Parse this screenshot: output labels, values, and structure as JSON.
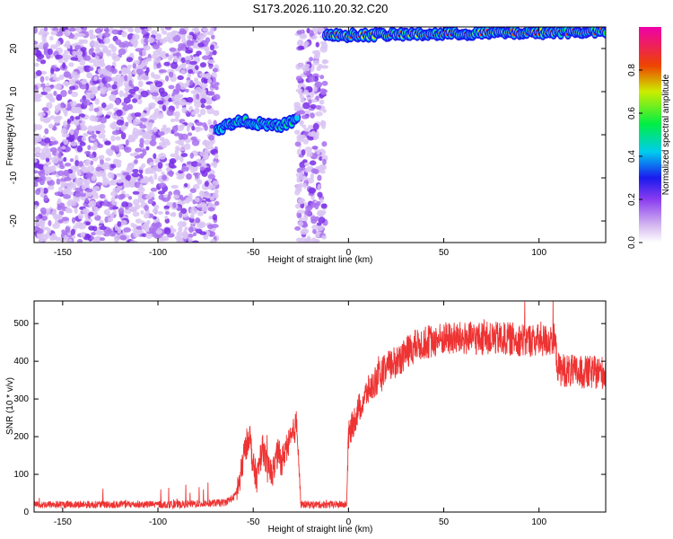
{
  "chart_data": [
    {
      "type": "heatmap",
      "title": "S173.2026.110.20.32.C20",
      "xlabel": "Height of straight line (km)",
      "ylabel": "Frequency (Hz)",
      "xlim": [
        -165,
        135
      ],
      "ylim": [
        -25,
        25
      ],
      "xticks": [
        -150,
        -100,
        -50,
        0,
        50,
        100
      ],
      "yticks": [
        -20,
        -10,
        0,
        10,
        20
      ],
      "colorbar": {
        "label": "Normalized spectral amplitude",
        "range": [
          0.0,
          1.0
        ],
        "ticks": [
          0.0,
          0.2,
          0.4,
          0.6,
          0.8
        ]
      },
      "regions": [
        {
          "name": "broadband noise",
          "x_range": [
            -165,
            -69
          ],
          "amplitude": 0.3
        },
        {
          "name": "narrow tone",
          "x_range": [
            -69,
            -27
          ],
          "freq_start": 1,
          "freq_end": 4,
          "amplitude": 0.5
        },
        {
          "name": "broadband noise",
          "x_range": [
            -27,
            -12
          ],
          "amplitude": 0.3
        },
        {
          "name": "strong tone",
          "x_range": [
            -12,
            135
          ],
          "freq_start": 23,
          "freq_end": 24,
          "amplitude": 0.85
        }
      ]
    },
    {
      "type": "line",
      "xlabel": "Height of straight line (km)",
      "ylabel": "SNR (10 * v/v)",
      "xlim": [
        -165,
        135
      ],
      "ylim": [
        0,
        560
      ],
      "xticks": [
        -150,
        -100,
        -50,
        0,
        50,
        100
      ],
      "yticks": [
        0,
        100,
        200,
        300,
        400,
        500
      ],
      "color": "#ee3333",
      "series": [
        {
          "name": "SNR",
          "x": [
            -165,
            -150,
            -120,
            -90,
            -65,
            -60,
            -57,
            -55,
            -52,
            -50,
            -48,
            -45,
            -43,
            -40,
            -37,
            -35,
            -33,
            -30,
            -27,
            -25,
            -20,
            -15,
            -10,
            -5,
            -2,
            -1,
            0,
            2,
            5,
            8,
            10,
            15,
            20,
            25,
            30,
            35,
            40,
            45,
            50,
            60,
            70,
            80,
            90,
            100,
            105,
            108,
            110,
            115,
            120,
            125,
            130,
            135
          ],
          "y": [
            20,
            20,
            20,
            20,
            25,
            40,
            80,
            150,
            210,
            120,
            90,
            180,
            120,
            100,
            160,
            130,
            170,
            190,
            240,
            20,
            20,
            20,
            20,
            20,
            20,
            20,
            200,
            230,
            270,
            300,
            320,
            350,
            380,
            400,
            420,
            440,
            450,
            455,
            460,
            460,
            460,
            460,
            458,
            455,
            455,
            465,
            380,
            375,
            370,
            370,
            370,
            370
          ]
        }
      ]
    }
  ]
}
